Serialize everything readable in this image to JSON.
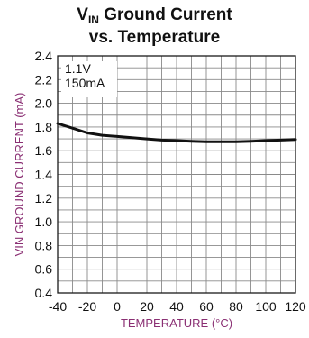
{
  "chart_data": {
    "type": "line",
    "title_main": "V",
    "title_sub": "IN",
    "title_rest": " Ground Current",
    "title_line2": "vs. Temperature",
    "xlabel": "TEMPERATURE (°C)",
    "ylabel": "VIN GROUND CURRENT (mA)",
    "xlim": [
      -40,
      120
    ],
    "ylim": [
      0.4,
      2.4
    ],
    "xticks": [
      -40,
      -20,
      0,
      20,
      40,
      60,
      80,
      100,
      120
    ],
    "xtick_labels": [
      "-40",
      "-20",
      "0",
      "20",
      "40",
      "60",
      "80",
      "100",
      "120"
    ],
    "yticks": [
      0.4,
      0.6,
      0.8,
      1.0,
      1.2,
      1.4,
      1.6,
      1.8,
      2.0,
      2.2,
      2.4
    ],
    "ytick_labels": [
      "0.4",
      "0.6",
      "0.8",
      "1.0",
      "1.2",
      "1.4",
      "1.6",
      "1.8",
      "2.0",
      "2.2",
      "2.4"
    ],
    "grid": true,
    "minor_grid_x_step": 10,
    "minor_grid_y_step": 0.1,
    "annotations": [
      "1.1V",
      "150mA"
    ],
    "series": [
      {
        "x": [
          -40,
          -30,
          -20,
          -10,
          0,
          10,
          20,
          30,
          40,
          50,
          60,
          70,
          80,
          90,
          100,
          110,
          120
        ],
        "y": [
          1.83,
          1.79,
          1.75,
          1.73,
          1.72,
          1.71,
          1.7,
          1.69,
          1.685,
          1.68,
          1.675,
          1.675,
          1.675,
          1.68,
          1.685,
          1.69,
          1.695
        ]
      }
    ]
  },
  "colors": {
    "grid": "#8a8a8a",
    "frame": "#1a1a1a",
    "line": "#111111",
    "axis_label": "#8a2f73"
  }
}
